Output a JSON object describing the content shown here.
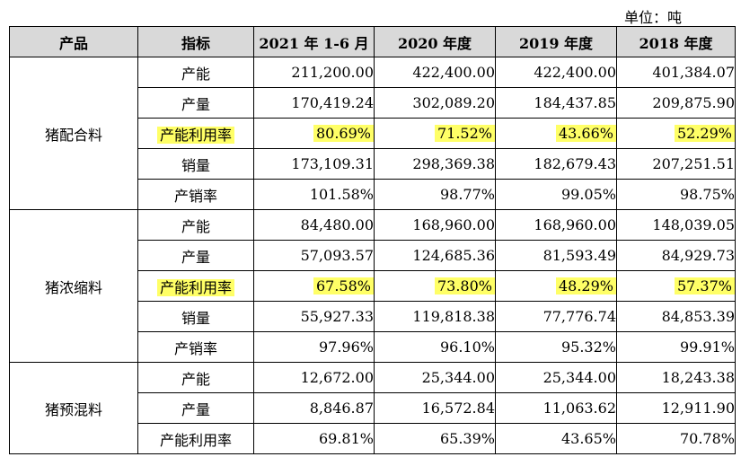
{
  "unit_label": "单位：吨",
  "header": [
    "产品",
    "指标",
    "2021 年 1-6 月",
    "2020 年度",
    "2019 年度",
    "2018 年度"
  ],
  "colors": {
    "header_bg": "#d9d9d9",
    "highlight": "#ffff66"
  },
  "groups": [
    {
      "product": "猪配合料",
      "rows": [
        {
          "metric": "产能",
          "values": [
            "211,200.00",
            "422,400.00",
            "422,400.00",
            "401,384.07"
          ],
          "highlight": false
        },
        {
          "metric": "产量",
          "values": [
            "170,419.24",
            "302,089.20",
            "184,437.85",
            "209,875.90"
          ],
          "highlight": false
        },
        {
          "metric": "产能利用率",
          "values": [
            "80.69%",
            "71.52%",
            "43.66%",
            "52.29%"
          ],
          "highlight": true
        },
        {
          "metric": "销量",
          "values": [
            "173,109.31",
            "298,369.38",
            "182,679.43",
            "207,251.51"
          ],
          "highlight": false
        },
        {
          "metric": "产销率",
          "values": [
            "101.58%",
            "98.77%",
            "99.05%",
            "98.75%"
          ],
          "highlight": false
        }
      ]
    },
    {
      "product": "猪浓缩料",
      "rows": [
        {
          "metric": "产能",
          "values": [
            "84,480.00",
            "168,960.00",
            "168,960.00",
            "148,039.05"
          ],
          "highlight": false
        },
        {
          "metric": "产量",
          "values": [
            "57,093.57",
            "124,685.36",
            "81,593.49",
            "84,929.73"
          ],
          "highlight": false
        },
        {
          "metric": "产能利用率",
          "values": [
            "67.58%",
            "73.80%",
            "48.29%",
            "57.37%"
          ],
          "highlight": true
        },
        {
          "metric": "销量",
          "values": [
            "55,927.33",
            "119,818.38",
            "77,776.74",
            "84,853.39"
          ],
          "highlight": false
        },
        {
          "metric": "产销率",
          "values": [
            "97.96%",
            "96.10%",
            "95.32%",
            "99.91%"
          ],
          "highlight": false
        }
      ]
    },
    {
      "product": "猪预混料",
      "rows": [
        {
          "metric": "产能",
          "values": [
            "12,672.00",
            "25,344.00",
            "25,344.00",
            "18,243.38"
          ],
          "highlight": false
        },
        {
          "metric": "产量",
          "values": [
            "8,846.87",
            "16,572.84",
            "11,063.62",
            "12,911.90"
          ],
          "highlight": false
        },
        {
          "metric": "产能利用率",
          "values": [
            "69.81%",
            "65.39%",
            "43.65%",
            "70.78%"
          ],
          "highlight": false
        }
      ]
    }
  ]
}
